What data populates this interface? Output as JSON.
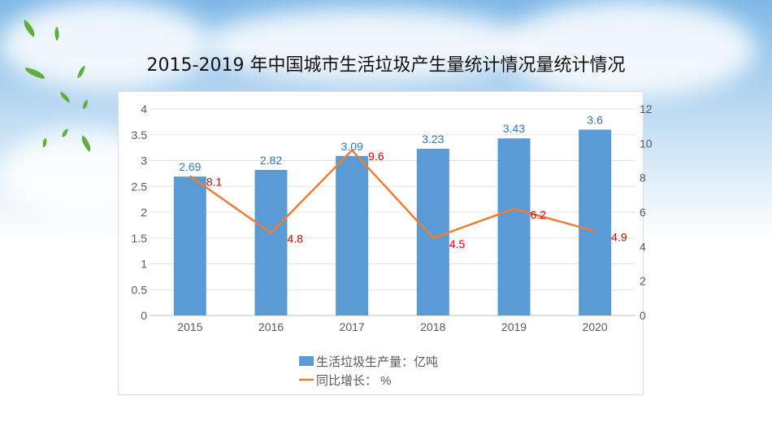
{
  "title": "2015-2019 年中国城市生活垃圾产生量统计情况量统计情况",
  "chart_data": {
    "type": "bar+line",
    "title": "2015-2019 年中国城市生活垃圾产生量统计情况量统计情况",
    "categories": [
      "2015",
      "2016",
      "2017",
      "2018",
      "2019",
      "2020"
    ],
    "series": [
      {
        "name": "生活垃圾生产量：亿吨",
        "type": "bar",
        "axis": "left",
        "color": "#5b9bd5",
        "values": [
          2.69,
          2.82,
          3.09,
          3.23,
          3.43,
          3.6
        ],
        "label_color": "#2e75b6"
      },
      {
        "name": "同比增长：  %",
        "type": "line",
        "axis": "right",
        "color": "#ed7d31",
        "values": [
          8.1,
          4.8,
          9.6,
          4.5,
          6.2,
          4.9
        ],
        "label_color": "#e00000"
      }
    ],
    "y_left": {
      "range": [
        0,
        4
      ],
      "ticks": [
        "0",
        "0.5",
        "1",
        "1.5",
        "2",
        "2.5",
        "3",
        "3.5",
        "4"
      ]
    },
    "y_right": {
      "range": [
        0,
        12
      ],
      "ticks": [
        "0",
        "2",
        "4",
        "6",
        "8",
        "10",
        "12"
      ]
    },
    "grid": true,
    "legend": "bottom"
  }
}
